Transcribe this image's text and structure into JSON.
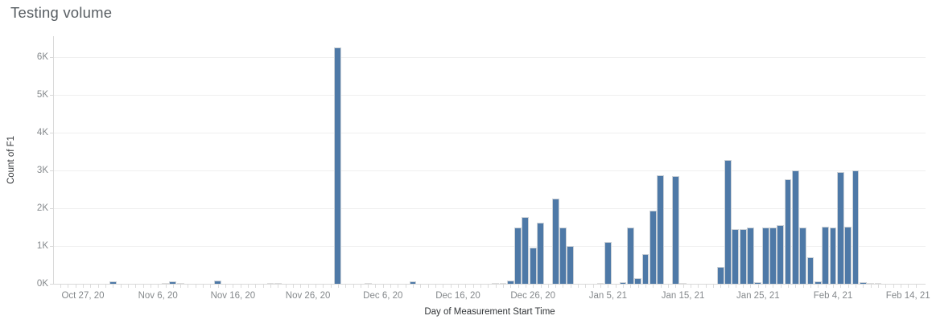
{
  "chart_data": {
    "type": "bar",
    "title": "Testing volume",
    "xlabel": "Day of Measurement Start Time",
    "ylabel": "Count of F1",
    "legend": "none",
    "grid": "horizontal",
    "colors": {
      "bar": "#4e79a7",
      "bar_border": "#ccd2d8",
      "bar_tiny": "#dedede",
      "gridline": "#f0f0f0",
      "axis_line": "#d9d9d9",
      "tick": "#dcdcdc",
      "tick_label": "#85898c",
      "axis_title": "#333639",
      "title": "#575d62"
    },
    "y_axis": {
      "unit": "K",
      "max_value": 6550,
      "ticks": [
        {
          "value": 0,
          "label": "0K"
        },
        {
          "value": 1,
          "label": "1K"
        },
        {
          "value": 2,
          "label": "2K"
        },
        {
          "value": 3,
          "label": "3K"
        },
        {
          "value": 4,
          "label": "4K"
        },
        {
          "value": 5,
          "label": "5K"
        },
        {
          "value": 6,
          "label": "6K"
        }
      ]
    },
    "x_axis": {
      "start_date": "2020-10-27",
      "end_date": "2021-02-14",
      "minor_tick_every_days": 1,
      "ticks": [
        {
          "day": 0,
          "label": "Oct 27, 20"
        },
        {
          "day": 10,
          "label": "Nov 6, 20"
        },
        {
          "day": 20,
          "label": "Nov 16, 20"
        },
        {
          "day": 30,
          "label": "Nov 26, 20"
        },
        {
          "day": 40,
          "label": "Dec 6, 20"
        },
        {
          "day": 50,
          "label": "Dec 16, 20"
        },
        {
          "day": 60,
          "label": "Dec 26, 20"
        },
        {
          "day": 70,
          "label": "Jan 5, 21"
        },
        {
          "day": 80,
          "label": "Jan 15, 21"
        },
        {
          "day": 90,
          "label": "Jan 25, 21"
        },
        {
          "day": 100,
          "label": "Feb 4, 21"
        },
        {
          "day": 110,
          "label": "Feb 14, 21"
        }
      ]
    },
    "points": [
      {
        "date": "2020-10-31",
        "value": 60
      },
      {
        "date": "2020-11-07",
        "value": 15
      },
      {
        "date": "2020-11-08",
        "value": 60
      },
      {
        "date": "2020-11-09",
        "value": 15
      },
      {
        "date": "2020-11-14",
        "value": 80
      },
      {
        "date": "2020-11-21",
        "value": 15
      },
      {
        "date": "2020-11-22",
        "value": 15
      },
      {
        "date": "2020-11-30",
        "value": 6260
      },
      {
        "date": "2020-12-04",
        "value": 15
      },
      {
        "date": "2020-12-10",
        "value": 70
      },
      {
        "date": "2020-12-21",
        "value": 15
      },
      {
        "date": "2020-12-22",
        "value": 15
      },
      {
        "date": "2020-12-23",
        "value": 90
      },
      {
        "date": "2020-12-24",
        "value": 1500
      },
      {
        "date": "2020-12-25",
        "value": 1760
      },
      {
        "date": "2020-12-26",
        "value": 950
      },
      {
        "date": "2020-12-27",
        "value": 1620
      },
      {
        "date": "2020-12-29",
        "value": 2260
      },
      {
        "date": "2020-12-30",
        "value": 1490
      },
      {
        "date": "2020-12-31",
        "value": 1010
      },
      {
        "date": "2021-01-04",
        "value": 15
      },
      {
        "date": "2021-01-05",
        "value": 1110
      },
      {
        "date": "2021-01-07",
        "value": 45
      },
      {
        "date": "2021-01-08",
        "value": 1490
      },
      {
        "date": "2021-01-09",
        "value": 140
      },
      {
        "date": "2021-01-10",
        "value": 780
      },
      {
        "date": "2021-01-11",
        "value": 1930
      },
      {
        "date": "2021-01-12",
        "value": 2880
      },
      {
        "date": "2021-01-14",
        "value": 2860
      },
      {
        "date": "2021-01-15",
        "value": 15
      },
      {
        "date": "2021-01-20",
        "value": 450
      },
      {
        "date": "2021-01-21",
        "value": 3270
      },
      {
        "date": "2021-01-22",
        "value": 1440
      },
      {
        "date": "2021-01-23",
        "value": 1440
      },
      {
        "date": "2021-01-24",
        "value": 1500
      },
      {
        "date": "2021-01-25",
        "value": 45
      },
      {
        "date": "2021-01-26",
        "value": 1500
      },
      {
        "date": "2021-01-27",
        "value": 1480
      },
      {
        "date": "2021-01-28",
        "value": 1560
      },
      {
        "date": "2021-01-29",
        "value": 2760
      },
      {
        "date": "2021-01-30",
        "value": 2990
      },
      {
        "date": "2021-01-31",
        "value": 1480
      },
      {
        "date": "2021-02-01",
        "value": 700
      },
      {
        "date": "2021-02-02",
        "value": 70
      },
      {
        "date": "2021-02-03",
        "value": 1510
      },
      {
        "date": "2021-02-04",
        "value": 1480
      },
      {
        "date": "2021-02-05",
        "value": 2960
      },
      {
        "date": "2021-02-06",
        "value": 1510
      },
      {
        "date": "2021-02-07",
        "value": 2990
      },
      {
        "date": "2021-02-08",
        "value": 45
      },
      {
        "date": "2021-02-09",
        "value": 15
      },
      {
        "date": "2021-02-10",
        "value": 15
      }
    ]
  }
}
